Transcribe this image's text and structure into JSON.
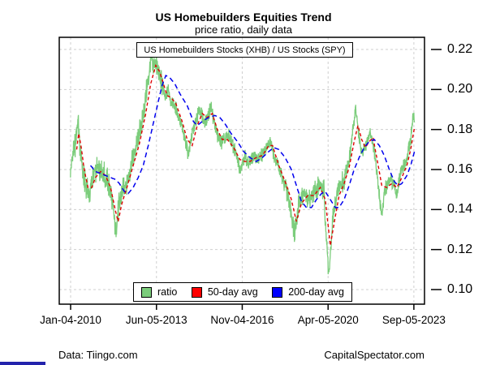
{
  "header": {
    "title": "US Homebuilders Equities Trend",
    "subtitle": "price ratio, daily data"
  },
  "annotation_box": {
    "label": "US Homebuilders Stocks (XHB) / US Stocks (SPY)"
  },
  "footer": {
    "left": "Data: Tiingo.com",
    "right": "CapitalSpectator.com"
  },
  "colors": {
    "ratio_line": "#7CCD7C",
    "avg50_line": "#DE0000",
    "avg200_line": "#0000EE",
    "legend_ratio": "#7CCD7C",
    "legend_avg50": "#FF0000",
    "legend_avg200": "#0000FF",
    "gridline": "#CFCFCF",
    "axis": "#000000",
    "corner_bar": "#2323AC"
  },
  "chart_data": {
    "type": "line",
    "title": "US Homebuilders Equities Trend",
    "subtitle": "price ratio, daily data",
    "grid": true,
    "legend_position": "bottom-center",
    "y_axis": {
      "side": "right",
      "range": [
        0.093,
        0.226
      ],
      "ticks": [
        {
          "label": "0.22",
          "v": 0.22
        },
        {
          "label": "0.20",
          "v": 0.2
        },
        {
          "label": "0.18",
          "v": 0.18
        },
        {
          "label": "0.16",
          "v": 0.16
        },
        {
          "label": "0.14",
          "v": 0.14
        },
        {
          "label": "0.12",
          "v": 0.12
        },
        {
          "label": "0.10",
          "v": 0.1
        }
      ]
    },
    "x_axis": {
      "range": [
        2009.55,
        2024.1
      ],
      "ticks": [
        {
          "label": "Jan-04-2010",
          "t": 2010.008
        },
        {
          "label": "Jun-05-2013",
          "t": 2013.427
        },
        {
          "label": "Nov-04-2016",
          "t": 2016.843
        },
        {
          "label": "Apr-05-2020",
          "t": 2020.262
        },
        {
          "label": "Sep-05-2023",
          "t": 2023.678
        }
      ]
    },
    "legend": {
      "items": [
        {
          "label": "ratio",
          "color": "#7CCD7C"
        },
        {
          "label": "50-day avg",
          "color": "#FF0000"
        },
        {
          "label": "200-day avg",
          "color": "#0000FF"
        }
      ]
    },
    "series": [
      {
        "name": "ratio",
        "style": "solid",
        "color": "#7CCD7C",
        "width": 1.3,
        "noise": 0.0032,
        "points": [
          [
            2010.0,
            0.159
          ],
          [
            2010.08,
            0.166
          ],
          [
            2010.18,
            0.172
          ],
          [
            2010.3,
            0.184
          ],
          [
            2010.38,
            0.172
          ],
          [
            2010.5,
            0.158
          ],
          [
            2010.62,
            0.151
          ],
          [
            2010.75,
            0.147
          ],
          [
            2010.9,
            0.156
          ],
          [
            2011.0,
            0.158
          ],
          [
            2011.13,
            0.162
          ],
          [
            2011.3,
            0.158
          ],
          [
            2011.45,
            0.156
          ],
          [
            2011.6,
            0.149
          ],
          [
            2011.72,
            0.138
          ],
          [
            2011.8,
            0.131
          ],
          [
            2011.94,
            0.142
          ],
          [
            2012.1,
            0.15
          ],
          [
            2012.25,
            0.155
          ],
          [
            2012.4,
            0.161
          ],
          [
            2012.55,
            0.168
          ],
          [
            2012.7,
            0.176
          ],
          [
            2012.85,
            0.184
          ],
          [
            2013.0,
            0.197
          ],
          [
            2013.1,
            0.205
          ],
          [
            2013.2,
            0.215
          ],
          [
            2013.3,
            0.211
          ],
          [
            2013.4,
            0.214
          ],
          [
            2013.53,
            0.207
          ],
          [
            2013.65,
            0.203
          ],
          [
            2013.78,
            0.195
          ],
          [
            2013.9,
            0.2
          ],
          [
            2014.0,
            0.194
          ],
          [
            2014.15,
            0.192
          ],
          [
            2014.35,
            0.185
          ],
          [
            2014.5,
            0.178
          ],
          [
            2014.7,
            0.168
          ],
          [
            2014.85,
            0.178
          ],
          [
            2015.0,
            0.185
          ],
          [
            2015.15,
            0.19
          ],
          [
            2015.35,
            0.183
          ],
          [
            2015.6,
            0.191
          ],
          [
            2015.75,
            0.182
          ],
          [
            2015.92,
            0.174
          ],
          [
            2016.1,
            0.174
          ],
          [
            2016.3,
            0.177
          ],
          [
            2016.5,
            0.171
          ],
          [
            2016.75,
            0.161
          ],
          [
            2016.95,
            0.167
          ],
          [
            2017.1,
            0.162
          ],
          [
            2017.3,
            0.167
          ],
          [
            2017.5,
            0.165
          ],
          [
            2017.7,
            0.169
          ],
          [
            2017.96,
            0.175
          ],
          [
            2018.1,
            0.168
          ],
          [
            2018.35,
            0.159
          ],
          [
            2018.6,
            0.15
          ],
          [
            2018.8,
            0.138
          ],
          [
            2018.92,
            0.129
          ],
          [
            2019.1,
            0.143
          ],
          [
            2019.3,
            0.148
          ],
          [
            2019.5,
            0.145
          ],
          [
            2019.7,
            0.149
          ],
          [
            2019.9,
            0.152
          ],
          [
            2020.1,
            0.149
          ],
          [
            2020.22,
            0.12
          ],
          [
            2020.3,
            0.107
          ],
          [
            2020.45,
            0.135
          ],
          [
            2020.6,
            0.147
          ],
          [
            2020.75,
            0.152
          ],
          [
            2020.9,
            0.155
          ],
          [
            2021.0,
            0.16
          ],
          [
            2021.15,
            0.168
          ],
          [
            2021.35,
            0.191
          ],
          [
            2021.5,
            0.176
          ],
          [
            2021.62,
            0.167
          ],
          [
            2021.8,
            0.174
          ],
          [
            2021.95,
            0.178
          ],
          [
            2022.1,
            0.17
          ],
          [
            2022.3,
            0.147
          ],
          [
            2022.4,
            0.138
          ],
          [
            2022.55,
            0.151
          ],
          [
            2022.75,
            0.155
          ],
          [
            2022.9,
            0.151
          ],
          [
            2023.0,
            0.148
          ],
          [
            2023.15,
            0.158
          ],
          [
            2023.3,
            0.162
          ],
          [
            2023.4,
            0.165
          ],
          [
            2023.55,
            0.175
          ],
          [
            2023.66,
            0.188
          ],
          [
            2023.7,
            0.184
          ]
        ]
      },
      {
        "name": "50-day avg",
        "style": "dashed",
        "dash": "4,3",
        "color": "#DE0000",
        "width": 1.4,
        "points": [
          [
            2010.25,
            0.17
          ],
          [
            2010.33,
            0.178
          ],
          [
            2010.42,
            0.172
          ],
          [
            2010.55,
            0.16
          ],
          [
            2010.7,
            0.151
          ],
          [
            2010.85,
            0.151
          ],
          [
            2011.0,
            0.156
          ],
          [
            2011.2,
            0.159
          ],
          [
            2011.4,
            0.157
          ],
          [
            2011.6,
            0.151
          ],
          [
            2011.8,
            0.139
          ],
          [
            2011.9,
            0.134
          ],
          [
            2012.05,
            0.143
          ],
          [
            2012.25,
            0.151
          ],
          [
            2012.5,
            0.162
          ],
          [
            2012.75,
            0.173
          ],
          [
            2013.0,
            0.188
          ],
          [
            2013.2,
            0.203
          ],
          [
            2013.4,
            0.212
          ],
          [
            2013.55,
            0.209
          ],
          [
            2013.7,
            0.203
          ],
          [
            2013.85,
            0.197
          ],
          [
            2014.0,
            0.196
          ],
          [
            2014.2,
            0.193
          ],
          [
            2014.45,
            0.184
          ],
          [
            2014.65,
            0.175
          ],
          [
            2014.85,
            0.172
          ],
          [
            2015.05,
            0.182
          ],
          [
            2015.25,
            0.188
          ],
          [
            2015.45,
            0.186
          ],
          [
            2015.65,
            0.188
          ],
          [
            2015.85,
            0.18
          ],
          [
            2016.05,
            0.175
          ],
          [
            2016.25,
            0.175
          ],
          [
            2016.5,
            0.171
          ],
          [
            2016.75,
            0.165
          ],
          [
            2016.95,
            0.164
          ],
          [
            2017.15,
            0.164
          ],
          [
            2017.4,
            0.166
          ],
          [
            2017.65,
            0.167
          ],
          [
            2017.9,
            0.172
          ],
          [
            2018.05,
            0.172
          ],
          [
            2018.3,
            0.162
          ],
          [
            2018.55,
            0.154
          ],
          [
            2018.8,
            0.145
          ],
          [
            2019.0,
            0.134
          ],
          [
            2019.2,
            0.143
          ],
          [
            2019.45,
            0.147
          ],
          [
            2019.7,
            0.147
          ],
          [
            2019.95,
            0.151
          ],
          [
            2020.15,
            0.145
          ],
          [
            2020.35,
            0.122
          ],
          [
            2020.5,
            0.133
          ],
          [
            2020.7,
            0.147
          ],
          [
            2020.9,
            0.153
          ],
          [
            2021.1,
            0.161
          ],
          [
            2021.3,
            0.174
          ],
          [
            2021.45,
            0.182
          ],
          [
            2021.6,
            0.175
          ],
          [
            2021.75,
            0.171
          ],
          [
            2021.9,
            0.174
          ],
          [
            2022.05,
            0.176
          ],
          [
            2022.2,
            0.166
          ],
          [
            2022.4,
            0.152
          ],
          [
            2022.6,
            0.151
          ],
          [
            2022.8,
            0.153
          ],
          [
            2023.0,
            0.151
          ],
          [
            2023.2,
            0.156
          ],
          [
            2023.4,
            0.162
          ],
          [
            2023.55,
            0.17
          ],
          [
            2023.7,
            0.181
          ]
        ]
      },
      {
        "name": "200-day avg",
        "style": "dashed",
        "dash": "6,4",
        "color": "#0000EE",
        "width": 1.5,
        "points": [
          [
            2010.8,
            0.162
          ],
          [
            2011.0,
            0.159
          ],
          [
            2011.2,
            0.158
          ],
          [
            2011.4,
            0.157
          ],
          [
            2011.6,
            0.156
          ],
          [
            2011.8,
            0.155
          ],
          [
            2011.95,
            0.153
          ],
          [
            2012.15,
            0.149
          ],
          [
            2012.3,
            0.148
          ],
          [
            2012.5,
            0.151
          ],
          [
            2012.7,
            0.156
          ],
          [
            2012.9,
            0.162
          ],
          [
            2013.1,
            0.172
          ],
          [
            2013.3,
            0.183
          ],
          [
            2013.5,
            0.194
          ],
          [
            2013.65,
            0.202
          ],
          [
            2013.8,
            0.207
          ],
          [
            2013.95,
            0.206
          ],
          [
            2014.15,
            0.203
          ],
          [
            2014.4,
            0.197
          ],
          [
            2014.65,
            0.192
          ],
          [
            2014.9,
            0.184
          ],
          [
            2015.05,
            0.182
          ],
          [
            2015.25,
            0.184
          ],
          [
            2015.5,
            0.186
          ],
          [
            2015.75,
            0.187
          ],
          [
            2015.95,
            0.186
          ],
          [
            2016.15,
            0.183
          ],
          [
            2016.4,
            0.178
          ],
          [
            2016.65,
            0.174
          ],
          [
            2016.9,
            0.169
          ],
          [
            2017.15,
            0.166
          ],
          [
            2017.4,
            0.164
          ],
          [
            2017.65,
            0.166
          ],
          [
            2017.9,
            0.169
          ],
          [
            2018.1,
            0.171
          ],
          [
            2018.3,
            0.17
          ],
          [
            2018.55,
            0.166
          ],
          [
            2018.8,
            0.16
          ],
          [
            2019.0,
            0.152
          ],
          [
            2019.2,
            0.144
          ],
          [
            2019.4,
            0.141
          ],
          [
            2019.6,
            0.141
          ],
          [
            2019.8,
            0.145
          ],
          [
            2020.0,
            0.148
          ],
          [
            2020.15,
            0.149
          ],
          [
            2020.35,
            0.145
          ],
          [
            2020.55,
            0.141
          ],
          [
            2020.7,
            0.141
          ],
          [
            2020.9,
            0.145
          ],
          [
            2021.1,
            0.152
          ],
          [
            2021.3,
            0.16
          ],
          [
            2021.5,
            0.166
          ],
          [
            2021.7,
            0.171
          ],
          [
            2021.9,
            0.174
          ],
          [
            2022.1,
            0.175
          ],
          [
            2022.3,
            0.172
          ],
          [
            2022.5,
            0.167
          ],
          [
            2022.7,
            0.16
          ],
          [
            2022.9,
            0.154
          ],
          [
            2023.05,
            0.152
          ],
          [
            2023.2,
            0.153
          ],
          [
            2023.4,
            0.157
          ],
          [
            2023.55,
            0.162
          ],
          [
            2023.7,
            0.169
          ]
        ]
      }
    ]
  }
}
